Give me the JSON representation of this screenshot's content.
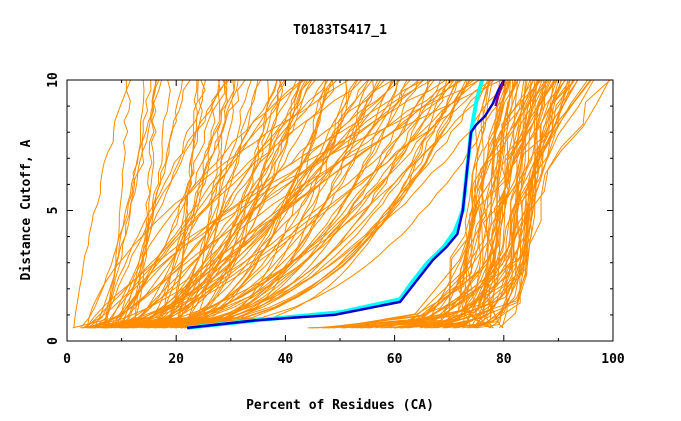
{
  "chart_data": {
    "type": "line",
    "title": "T0183TS417_1",
    "xlabel": "Percent of Residues (CA)",
    "ylabel": "Distance Cutoff, A",
    "xlim": [
      0,
      100
    ],
    "ylim": [
      0,
      10
    ],
    "xticks": [
      0,
      20,
      40,
      60,
      80,
      100
    ],
    "yticks": [
      0,
      5,
      10
    ],
    "grid": false,
    "legend": "none",
    "colors": {
      "background_models": "#ff8c00",
      "highlight_cyan": "#00ffff",
      "highlight_blue": "#0000cd",
      "highlight_purple": "#800080",
      "axes": "#000000"
    },
    "series": [
      {
        "color": "#00ffff",
        "x": [
          22,
          35,
          50,
          61,
          63,
          66,
          69,
          71,
          72.5,
          73,
          73.5,
          74,
          75,
          76
        ],
        "y": [
          0.5,
          0.8,
          1.1,
          1.6,
          2.2,
          3.0,
          3.6,
          4.2,
          5.0,
          6.0,
          7.0,
          8.0,
          9.2,
          10
        ]
      },
      {
        "color": "#0000cd",
        "x": [
          22,
          35,
          49,
          61,
          64,
          67,
          69.5,
          71.5,
          72.5,
          73,
          73.5,
          74,
          75,
          76.5,
          78,
          79,
          80
        ],
        "y": [
          0.5,
          0.8,
          1.0,
          1.5,
          2.3,
          3.1,
          3.6,
          4.1,
          5.0,
          6.0,
          7.0,
          8.0,
          8.3,
          8.6,
          9.1,
          9.6,
          10
        ]
      },
      {
        "color": "#800080",
        "x": [
          78.5,
          79,
          79.5,
          80
        ],
        "y": [
          9.0,
          9.4,
          9.7,
          10
        ]
      }
    ],
    "background_model_families": {
      "note": "hundreds of overlapping orange model curves",
      "fan_models": {
        "count": 110,
        "x_start_range": [
          1,
          22
        ],
        "x_end_range": [
          6,
          82
        ],
        "y_range": [
          0.5,
          10
        ]
      },
      "near_native_models": {
        "count": 70,
        "x_start_range": [
          44,
          80
        ],
        "knee_x_range": [
          72,
          85
        ],
        "x_end_range": [
          76,
          100
        ],
        "y_range": [
          0.5,
          10
        ]
      }
    }
  }
}
